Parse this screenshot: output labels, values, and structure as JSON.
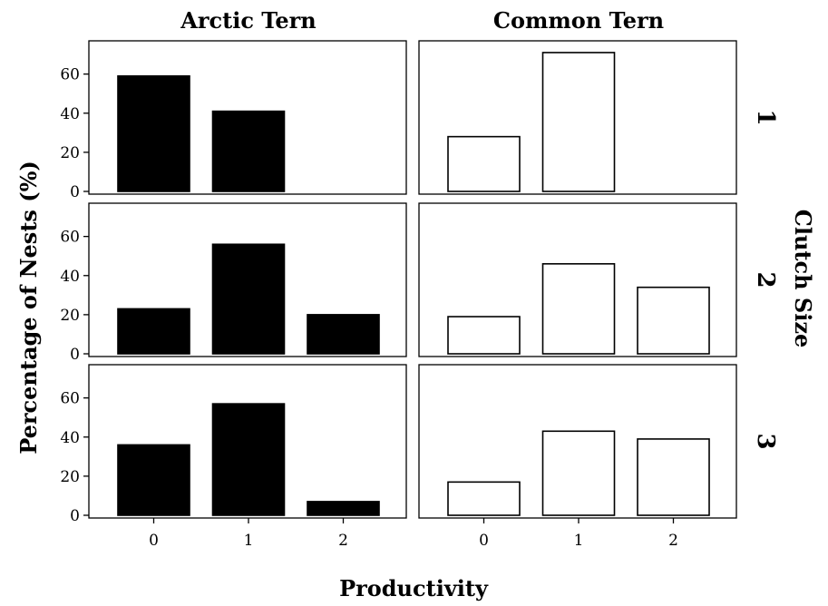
{
  "chart_data": {
    "type": "bar",
    "xlabel": "Productivity",
    "ylabel": "Percentage of Nests (%)",
    "row_facet_label": "Clutch Size",
    "columns": [
      {
        "name": "Arctic Tern",
        "fill": "#000000"
      },
      {
        "name": "Common Tern",
        "fill": "#ffffff"
      }
    ],
    "rows": [
      "1",
      "2",
      "3"
    ],
    "categories": [
      "0",
      "1",
      "2"
    ],
    "yticks": [
      "0",
      "20",
      "40",
      "60"
    ],
    "ylim": [
      0,
      77
    ],
    "grid": false,
    "panels": [
      {
        "species": "Arctic Tern",
        "clutch_size": "1",
        "values": [
          59,
          41,
          0
        ]
      },
      {
        "species": "Common Tern",
        "clutch_size": "1",
        "values": [
          28,
          71,
          0
        ]
      },
      {
        "species": "Arctic Tern",
        "clutch_size": "2",
        "values": [
          23,
          56,
          20
        ]
      },
      {
        "species": "Common Tern",
        "clutch_size": "2",
        "values": [
          19,
          46,
          34
        ]
      },
      {
        "species": "Arctic Tern",
        "clutch_size": "3",
        "values": [
          36,
          57,
          7
        ]
      },
      {
        "species": "Common Tern",
        "clutch_size": "3",
        "values": [
          17,
          43,
          39
        ]
      }
    ]
  }
}
